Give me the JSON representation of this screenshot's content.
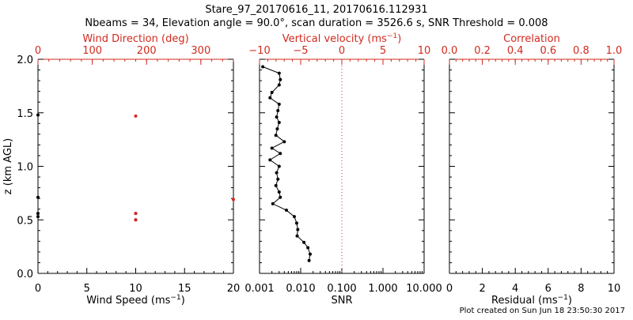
{
  "title": {
    "line1": "Stare_97_20170616_11, 20170616.112931",
    "line2": "Nbeams = 34, Elevation angle = 90.0°, scan duration = 3526.6 s, SNR Threshold = 0.008"
  },
  "footer": "Plot created on Sun Jun 18 23:50:30 2017",
  "colors": {
    "axis": "#000000",
    "accent": "#d22a1e"
  },
  "chart_data": [
    {
      "type": "scatter",
      "name": "wind-panel",
      "ylabel": "z (km AGL)",
      "ylim": [
        0,
        2
      ],
      "yticks": [
        "0.0",
        "0.5",
        "1.0",
        "1.5",
        "2.0"
      ],
      "bottom_axis": {
        "label": "Wind Speed (ms",
        "label_sup": "−1",
        "label_close": ")",
        "lim": [
          0,
          20
        ],
        "ticks": [
          "0",
          "5",
          "10",
          "15",
          "20"
        ]
      },
      "top_axis": {
        "label": "Wind Direction (deg)",
        "lim": [
          0,
          360
        ],
        "ticks": [
          "0",
          "100",
          "200",
          "300"
        ]
      },
      "series": [
        {
          "name": "Wind Speed",
          "color": "#000000",
          "points": [
            [
              0,
              1.48
            ],
            [
              0,
              0.71
            ],
            [
              0,
              0.56
            ],
            [
              0,
              0.53
            ],
            [
              10,
              0.56
            ],
            [
              10,
              0.5
            ]
          ]
        },
        {
          "name": "Wind Direction",
          "color": "#d22a1e",
          "points": [
            [
              180,
              1.47
            ],
            [
              180,
              0.56
            ],
            [
              180,
              0.5
            ],
            [
              360,
              0.69
            ]
          ]
        }
      ]
    },
    {
      "type": "line",
      "name": "velocity-snr-panel",
      "ylim": [
        0,
        2
      ],
      "bottom_axis": {
        "label": "SNR",
        "scale": "log",
        "lim": [
          0.001,
          10
        ],
        "ticks": [
          "0.001",
          "0.010",
          "0.100",
          "1.000",
          "10.000"
        ]
      },
      "top_axis": {
        "label": "Vertical velocity (ms",
        "label_sup": "−1",
        "label_close": ")",
        "lim": [
          -10,
          10
        ],
        "ticks": [
          "−10",
          "−5",
          "0",
          "5",
          "10"
        ]
      },
      "reference_line": {
        "axis": "top",
        "value": 0,
        "style": "dotted"
      },
      "series": [
        {
          "name": "SNR",
          "color": "#000000",
          "points": [
            [
              0.0012,
              1.93
            ],
            [
              0.003,
              1.87
            ],
            [
              0.0032,
              1.81
            ],
            [
              0.003,
              1.76
            ],
            [
              0.002,
              1.69
            ],
            [
              0.0018,
              1.64
            ],
            [
              0.003,
              1.58
            ],
            [
              0.0028,
              1.52
            ],
            [
              0.0026,
              1.46
            ],
            [
              0.003,
              1.41
            ],
            [
              0.0027,
              1.35
            ],
            [
              0.0025,
              1.29
            ],
            [
              0.004,
              1.23
            ],
            [
              0.002,
              1.17
            ],
            [
              0.0032,
              1.12
            ],
            [
              0.0018,
              1.06
            ],
            [
              0.003,
              1.0
            ],
            [
              0.0026,
              0.94
            ],
            [
              0.0028,
              0.88
            ],
            [
              0.0025,
              0.82
            ],
            [
              0.003,
              0.76
            ],
            [
              0.0032,
              0.71
            ],
            [
              0.0021,
              0.65
            ],
            [
              0.0045,
              0.59
            ],
            [
              0.007,
              0.53
            ],
            [
              0.008,
              0.47
            ],
            [
              0.0085,
              0.41
            ],
            [
              0.0082,
              0.35
            ],
            [
              0.012,
              0.29
            ],
            [
              0.015,
              0.24
            ],
            [
              0.017,
              0.18
            ],
            [
              0.016,
              0.12
            ]
          ]
        }
      ]
    },
    {
      "type": "scatter",
      "name": "correlation-panel",
      "ylim": [
        0,
        2
      ],
      "bottom_axis": {
        "label": "Residual (ms",
        "label_sup": "−1",
        "label_close": ")",
        "lim": [
          0,
          10
        ],
        "ticks": [
          "0",
          "2",
          "4",
          "6",
          "8",
          "10"
        ]
      },
      "top_axis": {
        "label": "Correlation",
        "lim": [
          0,
          1
        ],
        "ticks": [
          "0.0",
          "0.2",
          "0.4",
          "0.6",
          "0.8",
          "1.0"
        ]
      },
      "series": []
    }
  ]
}
